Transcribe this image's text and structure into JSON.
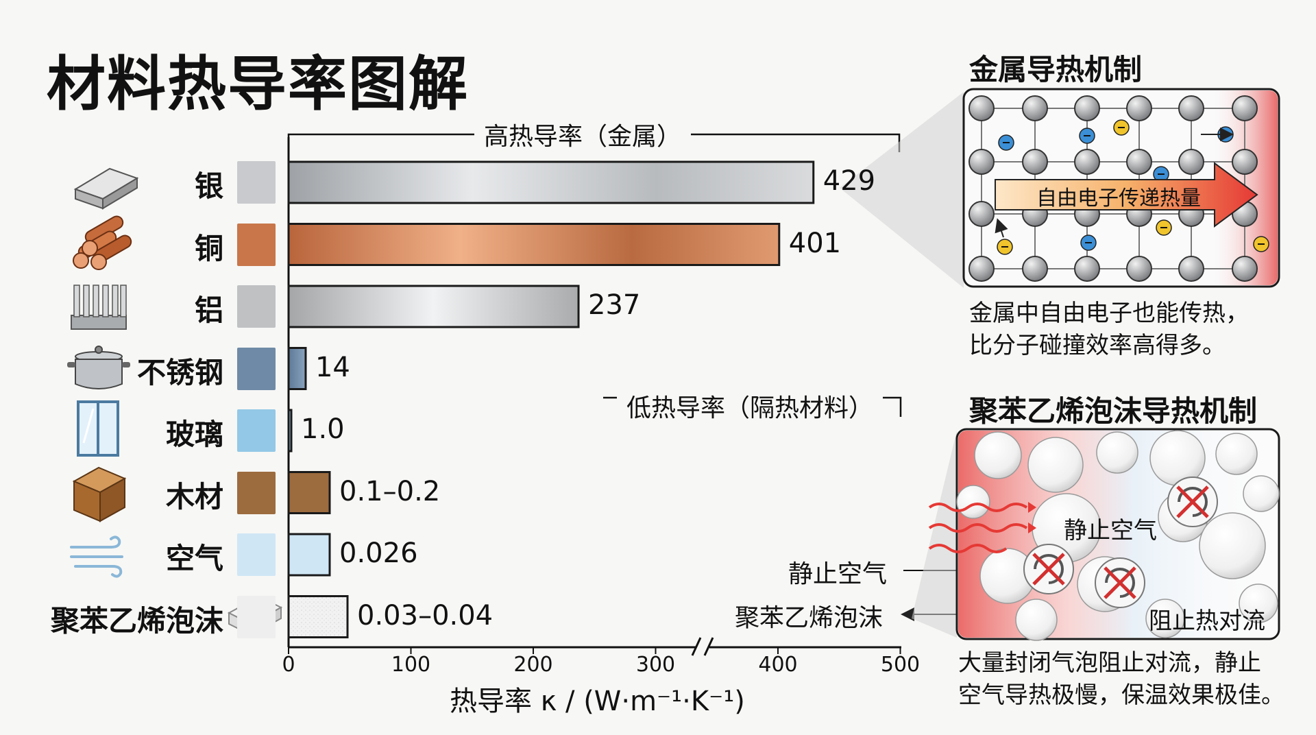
{
  "title": "材料热导率图解",
  "chart_data": {
    "type": "bar",
    "orientation": "horizontal",
    "categories": [
      "银",
      "铜",
      "铝",
      "不锈钢",
      "玻璃",
      "木材",
      "空气",
      "聚苯乙烯泡沫"
    ],
    "values": [
      429,
      401,
      237,
      14,
      1.0,
      0.15,
      0.026,
      0.035
    ],
    "value_labels": [
      "429",
      "401",
      "237",
      "14",
      "1.0",
      "0.1–0.2",
      "0.026",
      "0.03–0.04"
    ],
    "colors": [
      "#c8cacd",
      "#c8764a",
      "#bfc1c3",
      "#6f8aa6",
      "#93c8e6",
      "#9c6b3e",
      "#cfe6f5",
      "#eeeeee"
    ],
    "xlim": [
      0,
      500
    ],
    "xticks": [
      "0",
      "100",
      "200",
      "300",
      "400",
      "500"
    ],
    "axis_break": "between 300 and 400",
    "xlabel": "热导率 κ / (W·m⁻¹·K⁻¹)",
    "groups": [
      {
        "label": "高热导率（金属）"
      },
      {
        "label": "低热导率（隔热材料）"
      }
    ],
    "annotations": [
      "静止空气",
      "聚苯乙烯泡沫"
    ]
  },
  "icons": [
    "silver-ingot-icon",
    "copper-pipes-icon",
    "aluminum-heatsink-icon",
    "steel-pot-icon",
    "glass-window-icon",
    "wood-block-icon",
    "air-wind-icon",
    "foam-block-icon"
  ],
  "metal_panel": {
    "title": "金属导热机制",
    "arrow_label": "自由电子传递热量",
    "description_lines": [
      "金属中自由电子也能传热，",
      "比分子碰撞效率高得多。"
    ]
  },
  "foam_panel": {
    "title": "聚苯乙烯泡沫导热机制",
    "still_air_label": "静止空气",
    "block_label": "阻止热对流",
    "description_lines": [
      "大量封闭气泡阻止对流，静止",
      "空气导热极慢，保温效果极佳。"
    ]
  }
}
